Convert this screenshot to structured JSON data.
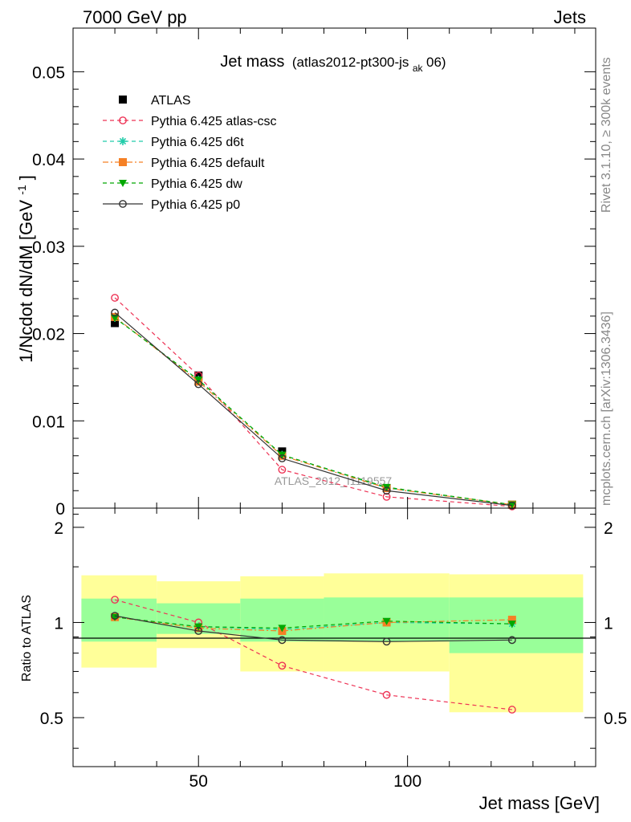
{
  "header": {
    "left": "7000 GeV pp",
    "right": "Jets"
  },
  "side_labels": {
    "rivet": "Rivet 3.1.10, ≥ 300k events",
    "mcplots": "mcplots.cern.ch [arXiv:1306.3436]"
  },
  "colors": {
    "atlas": "#000000",
    "atlas_csc": "#ee3355",
    "d6t": "#22ccaa",
    "default": "#f58025",
    "dw": "#00a800",
    "p0": "#333333",
    "band_outer": "#ffff99",
    "band_inner": "#99ff99"
  },
  "chart_data": [
    {
      "type": "line",
      "title": "Jet mass",
      "subtitle_main": "(atlas2012-pt300-js",
      "subtitle_sub": "ak",
      "subtitle_end": "06)",
      "ylabel": "1/Ncdot dN/dM [GeV",
      "ylabel_sup": "-1",
      "ylabel_end": "]",
      "watermark": "ATLAS_2012_I1119557",
      "xlim": [
        20,
        145
      ],
      "ylim": [
        0,
        0.055
      ],
      "yticks": [
        "0",
        "0.01",
        "0.02",
        "0.03",
        "0.04",
        "0.05"
      ],
      "ytick_values": [
        0,
        0.01,
        0.02,
        0.03,
        0.04,
        0.05
      ],
      "legend_placement": "top-left",
      "series": [
        {
          "name": "ATLAS",
          "key": "atlas",
          "marker": "square",
          "line": "none",
          "x": [
            30,
            50,
            70,
            95,
            125
          ],
          "y": [
            0.0212,
            0.0152,
            0.0065,
            0.0023,
            0.0004
          ]
        },
        {
          "name": "Pythia 6.425 atlas-csc",
          "key": "atlas_csc",
          "marker": "open-circle",
          "line": "dashed",
          "x": [
            30,
            50,
            70,
            95,
            125
          ],
          "y": [
            0.0241,
            0.0152,
            0.0044,
            0.0013,
            0.0002
          ]
        },
        {
          "name": "Pythia 6.425 d6t",
          "key": "d6t",
          "marker": "star",
          "line": "dashed",
          "x": [
            30,
            50,
            70,
            95,
            125
          ],
          "y": [
            0.0218,
            0.0147,
            0.0061,
            0.0023,
            0.0004
          ]
        },
        {
          "name": "Pythia 6.425 default",
          "key": "default",
          "marker": "square",
          "line": "dashdot",
          "x": [
            30,
            50,
            70,
            95,
            125
          ],
          "y": [
            0.0219,
            0.0145,
            0.006,
            0.0023,
            0.0004
          ]
        },
        {
          "name": "Pythia 6.425 dw",
          "key": "dw",
          "marker": "down-triangle",
          "line": "dashed",
          "x": [
            30,
            50,
            70,
            95,
            125
          ],
          "y": [
            0.0218,
            0.0147,
            0.0061,
            0.0024,
            0.0004
          ]
        },
        {
          "name": "Pythia 6.425 p0",
          "key": "p0",
          "marker": "open-circle",
          "line": "solid",
          "x": [
            30,
            50,
            70,
            95,
            125
          ],
          "y": [
            0.0224,
            0.0142,
            0.0057,
            0.002,
            0.0003
          ]
        }
      ]
    },
    {
      "type": "line",
      "ylabel": "Ratio to ATLAS",
      "xlabel": "Jet mass [GeV]",
      "xlim": [
        20,
        145
      ],
      "ylim": [
        0.35,
        2.3
      ],
      "xticks": [
        "50",
        "100"
      ],
      "xtick_values": [
        50,
        100
      ],
      "yticks": [
        "0.5",
        "1",
        "2"
      ],
      "ytick_values": [
        0.5,
        1,
        2
      ],
      "bands": {
        "bins": [
          [
            22,
            40
          ],
          [
            40,
            60
          ],
          [
            60,
            80
          ],
          [
            80,
            110
          ],
          [
            110,
            142
          ]
        ],
        "outer": [
          [
            0.72,
            1.41
          ],
          [
            0.83,
            1.35
          ],
          [
            0.7,
            1.4
          ],
          [
            0.7,
            1.43
          ],
          [
            0.52,
            1.42
          ]
        ],
        "inner": [
          [
            0.87,
            1.19
          ],
          [
            0.92,
            1.15
          ],
          [
            0.87,
            1.19
          ],
          [
            0.87,
            1.2
          ],
          [
            0.8,
            1.2
          ]
        ]
      },
      "series": [
        {
          "name": "Pythia 6.425 atlas-csc",
          "key": "atlas_csc",
          "x": [
            30,
            50,
            70,
            95,
            125
          ],
          "y": [
            1.18,
            1.0,
            0.73,
            0.59,
            0.53
          ]
        },
        {
          "name": "Pythia 6.425 d6t",
          "key": "d6t",
          "x": [
            30,
            50,
            70,
            95,
            125
          ],
          "y": [
            1.04,
            0.97,
            0.95,
            1.0,
            0.99
          ]
        },
        {
          "name": "Pythia 6.425 default",
          "key": "default",
          "x": [
            30,
            50,
            70,
            95,
            125
          ],
          "y": [
            1.04,
            0.96,
            0.94,
            1.0,
            1.02
          ]
        },
        {
          "name": "Pythia 6.425 dw",
          "key": "dw",
          "x": [
            30,
            50,
            70,
            95,
            125
          ],
          "y": [
            1.04,
            0.97,
            0.96,
            1.01,
            0.99
          ]
        },
        {
          "name": "Pythia 6.425 p0",
          "key": "p0",
          "x": [
            30,
            50,
            70,
            95,
            125
          ],
          "y": [
            1.05,
            0.94,
            0.88,
            0.87,
            0.88
          ]
        }
      ]
    }
  ]
}
